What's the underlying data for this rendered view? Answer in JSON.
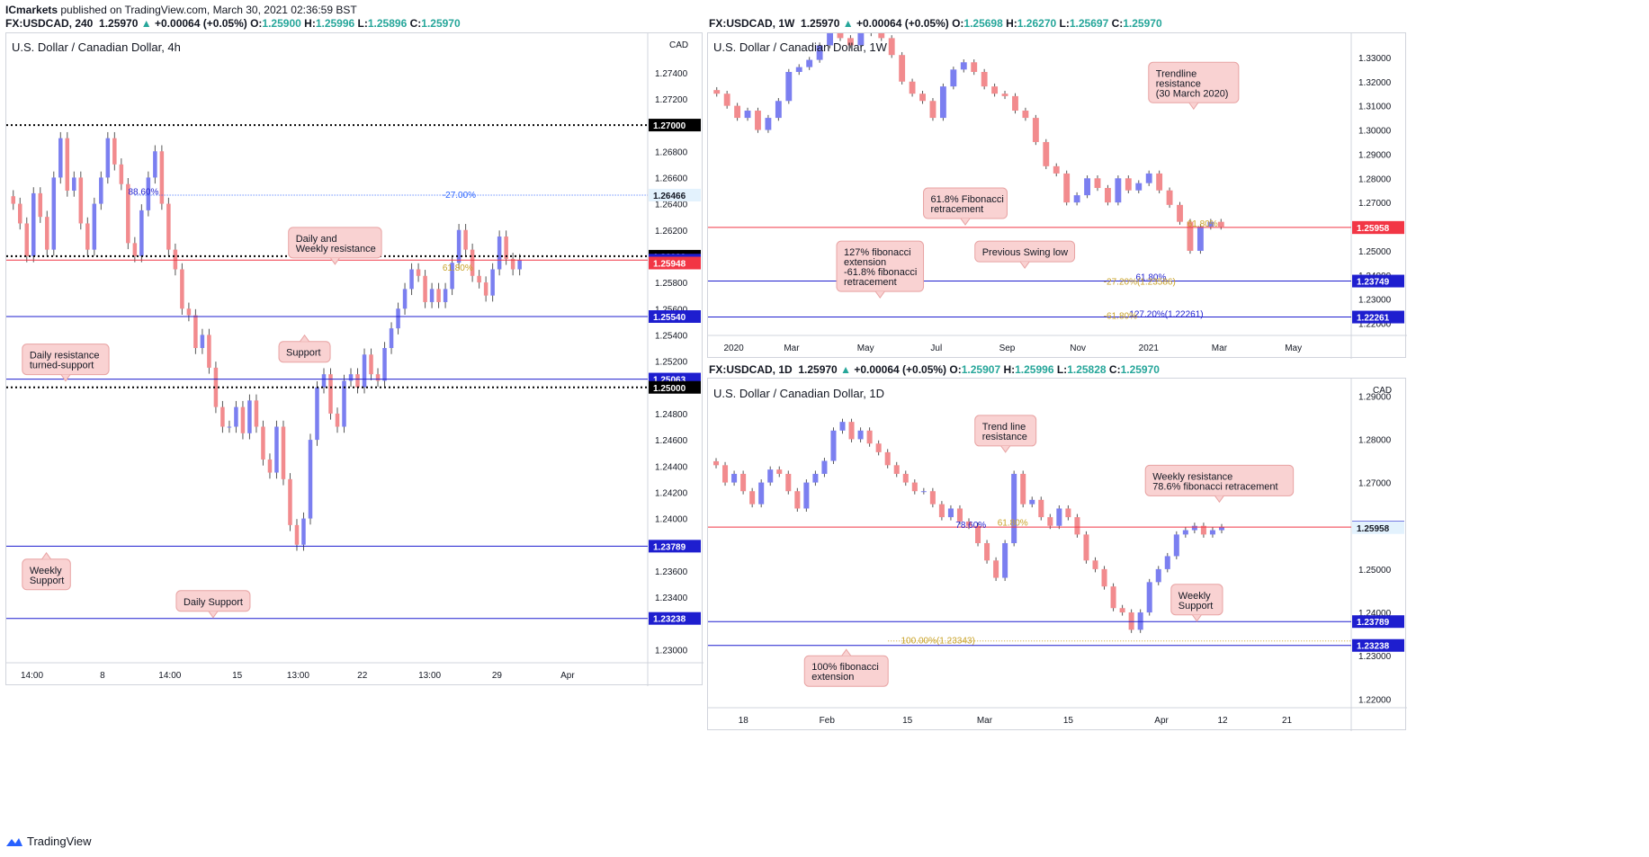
{
  "header": {
    "publisher": "ICmarkets",
    "published_text": " published on TradingView.com, March 30, 2021 02:36:59 BST"
  },
  "footer": {
    "brand": "TradingView"
  },
  "colors": {
    "bull": "#7b7ff0",
    "bear": "#f28b8e",
    "resistance": "#f23645",
    "support": "#1e1ecf",
    "callout_bg": "#f9d2d2",
    "callout_border": "#e8a3a3",
    "fib_blue": "#2962ff",
    "fib_orange": "#c9a227"
  },
  "chart_data": [
    {
      "id": "h4",
      "type": "candlestick",
      "symbol_line": {
        "sym": "FX:USDCAD, 240",
        "last": "1.25970",
        "chg": "+0.00064 (+0.05%)",
        "o": "1.25900",
        "h": "1.25996",
        "l": "1.25896",
        "c": "1.25970"
      },
      "subtitle": "U.S. Dollar / Canadian Dollar, 4h",
      "currency": "CAD",
      "ylim": [
        1.229,
        1.277
      ],
      "yticks": [
        "1.27400",
        "1.27200",
        "1.26800",
        "1.26600",
        "1.26400",
        "1.26200",
        "1.25800",
        "1.25600",
        "1.25400",
        "1.25200",
        "1.24800",
        "1.24600",
        "1.24400",
        "1.24200",
        "1.24000",
        "1.23600",
        "1.23400",
        "1.23000"
      ],
      "xticks": [
        [
          "14:00",
          0.04
        ],
        [
          "8",
          0.15
        ],
        [
          "14:00",
          0.255
        ],
        [
          "15",
          0.36
        ],
        [
          "13:00",
          0.455
        ],
        [
          "22",
          0.555
        ],
        [
          "13:00",
          0.66
        ],
        [
          "29",
          0.765
        ],
        [
          "Apr",
          0.875
        ]
      ],
      "hlines": [
        {
          "y": 1.27,
          "style": "dotted",
          "color": "#000000",
          "label": "1.27000",
          "tag": "#000000"
        },
        {
          "y": 1.26466,
          "style": "dotted-thin",
          "color": "#2962ff",
          "label": "1.26466",
          "tag": "#e3f2fd",
          "text": "-27.00%"
        },
        {
          "y": 1.26,
          "style": "dotted",
          "color": "#000000",
          "label": "1.26000",
          "tag": "#000000"
        },
        {
          "y": 1.2597,
          "style": "solid",
          "color": "#f23645",
          "label": "1.25970",
          "tag": "#1e1ecf"
        },
        {
          "y": 1.25948,
          "style": "none",
          "color": "#f23645",
          "label": "1.25948",
          "tag": "#f23645"
        },
        {
          "y": 1.2554,
          "style": "solid",
          "color": "#1e1ecf",
          "label": "1.25540",
          "tag": "#1e1ecf"
        },
        {
          "y": 1.25063,
          "style": "solid",
          "color": "#1e1ecf",
          "label": "1.25063",
          "tag": "#1e1ecf"
        },
        {
          "y": 1.25,
          "style": "dotted",
          "color": "#000000",
          "label": "1.25000",
          "tag": "#000000"
        },
        {
          "y": 1.23789,
          "style": "solid",
          "color": "#1e1ecf",
          "label": "1.23789",
          "tag": "#1e1ecf"
        },
        {
          "y": 1.23238,
          "style": "solid",
          "color": "#1e1ecf",
          "label": "1.23238",
          "tag": "#1e1ecf"
        }
      ],
      "fib_labels": [
        {
          "text": "88.60%",
          "x": 0.19,
          "y": 1.2647,
          "color": "#1e1ecf"
        },
        {
          "text": "61.80%",
          "x": 0.68,
          "y": 1.2589,
          "color": "#c9a227"
        }
      ],
      "callouts": [
        {
          "text": [
            "Daily and",
            "Weekly resistance"
          ],
          "x": 0.44,
          "y": 1.2622,
          "w": 0.145,
          "ptr": "down"
        },
        {
          "text": [
            "Support"
          ],
          "x": 0.425,
          "y": 1.2535,
          "w": 0.08,
          "ptr": "up"
        },
        {
          "text": [
            "Daily resistance",
            "turned-support"
          ],
          "x": 0.025,
          "y": 1.2533,
          "w": 0.135,
          "ptr": "down"
        },
        {
          "text": [
            "Weekly",
            "Support"
          ],
          "x": 0.025,
          "y": 1.2369,
          "w": 0.075,
          "ptr": "up"
        },
        {
          "text": [
            "Daily Support"
          ],
          "x": 0.265,
          "y": 1.2345,
          "w": 0.115,
          "ptr": "down"
        }
      ],
      "closes": [
        1.264,
        1.2625,
        1.26,
        1.2648,
        1.263,
        1.2605,
        1.266,
        1.269,
        1.265,
        1.266,
        1.2625,
        1.2605,
        1.264,
        1.266,
        1.269,
        1.267,
        1.2655,
        1.261,
        1.26,
        1.2635,
        1.266,
        1.268,
        1.264,
        1.2605,
        1.259,
        1.256,
        1.2555,
        1.253,
        1.254,
        1.2515,
        1.2485,
        1.247,
        1.247,
        1.2485,
        1.2465,
        1.249,
        1.247,
        1.2445,
        1.2435,
        1.247,
        1.243,
        1.2395,
        1.238,
        1.24,
        1.246,
        1.25,
        1.251,
        1.248,
        1.247,
        1.2505,
        1.251,
        1.25,
        1.2525,
        1.251,
        1.2505,
        1.253,
        1.2545,
        1.256,
        1.2575,
        1.259,
        1.2585,
        1.2565,
        1.2575,
        1.2565,
        1.2575,
        1.2595,
        1.262,
        1.2605,
        1.2585,
        1.258,
        1.257,
        1.259,
        1.2615,
        1.2598,
        1.259,
        1.2597
      ]
    },
    {
      "id": "w1",
      "type": "candlestick",
      "symbol_line": {
        "sym": "FX:USDCAD, 1W",
        "last": "1.25970",
        "chg": "+0.00064 (+0.05%)",
        "o": "1.25698",
        "h": "1.26270",
        "l": "1.25697",
        "c": "1.25970"
      },
      "subtitle": "U.S. Dollar / Canadian Dollar, 1W",
      "currency": "",
      "ylim": [
        1.215,
        1.34
      ],
      "yticks": [
        "1.33000",
        "1.32000",
        "1.31000",
        "1.30000",
        "1.29000",
        "1.28000",
        "1.27000",
        "1.26000",
        "1.25000",
        "1.24000",
        "1.23000",
        "1.22000"
      ],
      "xticks": [
        [
          "2020",
          0.04
        ],
        [
          "Mar",
          0.13
        ],
        [
          "May",
          0.245
        ],
        [
          "Jul",
          0.355
        ],
        [
          "Sep",
          0.465
        ],
        [
          "Nov",
          0.575
        ],
        [
          "2021",
          0.685
        ],
        [
          "Mar",
          0.795
        ],
        [
          "May",
          0.91
        ]
      ],
      "hlines": [
        {
          "y": 1.2597,
          "style": "solid",
          "color": "#f23645",
          "label": "1.25970",
          "tag": "#f23645"
        },
        {
          "y": 1.25958,
          "style": "none",
          "color": "#f23645",
          "label": "1.25958",
          "tag": "#f23645"
        },
        {
          "y": 1.23749,
          "style": "solid",
          "color": "#1e1ecf",
          "label": "1.23749",
          "tag": "#1e1ecf"
        },
        {
          "y": 1.22261,
          "style": "solid",
          "color": "#1e1ecf",
          "label": "1.22261",
          "tag": "#1e1ecf"
        }
      ],
      "fib_labels": [
        {
          "text": "61.80%",
          "x": 0.745,
          "y": 1.26,
          "color": "#c9a227"
        },
        {
          "text": "61.80%",
          "x": 0.665,
          "y": 1.2378,
          "color": "#1e1ecf"
        },
        {
          "text": "-27.20%(1.23586)",
          "x": 0.615,
          "y": 1.236,
          "color": "#c9a227"
        },
        {
          "text": "127.20%(1.22261)",
          "x": 0.655,
          "y": 1.2227,
          "color": "#1e1ecf"
        },
        {
          "text": "-61.80%",
          "x": 0.615,
          "y": 1.2218,
          "color": "#c9a227"
        }
      ],
      "callouts": [
        {
          "text": [
            "Trendline",
            "resistance",
            "(30 March 2020)"
          ],
          "x": 0.685,
          "y": 1.328,
          "w": 0.14,
          "ptr": "down"
        },
        {
          "text": [
            "61.8% Fibonacci",
            "retracement"
          ],
          "x": 0.335,
          "y": 1.276,
          "w": 0.13,
          "ptr": "down"
        },
        {
          "text": [
            "127% fibonacci",
            "extension",
            "-61.8% fibonacci",
            "retracement"
          ],
          "x": 0.2,
          "y": 1.254,
          "w": 0.135,
          "ptr": "down"
        },
        {
          "text": [
            "Previous Swing low"
          ],
          "x": 0.415,
          "y": 1.254,
          "w": 0.155,
          "ptr": "down"
        }
      ],
      "closes": [
        1.315,
        1.31,
        1.305,
        1.308,
        1.3,
        1.305,
        1.312,
        1.324,
        1.326,
        1.329,
        1.335,
        1.34,
        1.338,
        1.335,
        1.341,
        1.34,
        1.338,
        1.331,
        1.32,
        1.315,
        1.312,
        1.305,
        1.318,
        1.325,
        1.328,
        1.324,
        1.318,
        1.315,
        1.314,
        1.308,
        1.305,
        1.295,
        1.285,
        1.282,
        1.27,
        1.273,
        1.28,
        1.276,
        1.27,
        1.28,
        1.275,
        1.278,
        1.282,
        1.275,
        1.269,
        1.262,
        1.25,
        1.26,
        1.262,
        1.26
      ]
    },
    {
      "id": "d1",
      "type": "candlestick",
      "symbol_line": {
        "sym": "FX:USDCAD, 1D",
        "last": "1.25970",
        "chg": "+0.00064 (+0.05%)",
        "o": "1.25907",
        "h": "1.25996",
        "l": "1.25828",
        "c": "1.25970"
      },
      "subtitle": "U.S. Dollar / Canadian Dollar, 1D",
      "currency": "CAD",
      "ylim": [
        1.218,
        1.294
      ],
      "yticks": [
        "1.29000",
        "1.28000",
        "1.27000",
        "1.26000",
        "1.25000",
        "1.24000",
        "1.23000",
        "1.22000"
      ],
      "xticks": [
        [
          "18",
          0.055
        ],
        [
          "Feb",
          0.185
        ],
        [
          "15",
          0.31
        ],
        [
          "Mar",
          0.43
        ],
        [
          "15",
          0.56
        ],
        [
          "Apr",
          0.705
        ],
        [
          "12",
          0.8
        ],
        [
          "21",
          0.9
        ]
      ],
      "hlines": [
        {
          "y": 1.2597,
          "style": "solid",
          "color": "#f23645",
          "label": "1.25970",
          "tag": "#1e1ecf"
        },
        {
          "y": 1.25958,
          "style": "none",
          "color": "#f23645",
          "label": "1.25958",
          "tag": "#e3f2fd"
        },
        {
          "y": 1.23789,
          "style": "solid",
          "color": "#1e1ecf",
          "label": "1.23789",
          "tag": "#1e1ecf"
        },
        {
          "y": 1.23343,
          "style": "dotted-orange",
          "color": "#c9a227",
          "label": "",
          "tag": "",
          "text": "100.00%(1.23343)"
        },
        {
          "y": 1.23238,
          "style": "solid",
          "color": "#1e1ecf",
          "label": "1.23238",
          "tag": "#1e1ecf"
        }
      ],
      "fib_labels": [
        {
          "text": "78.60%",
          "x": 0.385,
          "y": 1.2595,
          "color": "#1e1ecf"
        },
        {
          "text": "61.80%",
          "x": 0.45,
          "y": 1.26,
          "color": "#c9a227"
        }
      ],
      "callouts": [
        {
          "text": [
            "Trend line",
            "resistance"
          ],
          "x": 0.415,
          "y": 1.2855,
          "w": 0.095,
          "ptr": "down"
        },
        {
          "text": [
            "Weekly resistance",
            "78.6% fibonacci retracement"
          ],
          "x": 0.68,
          "y": 1.274,
          "w": 0.23,
          "ptr": "down"
        },
        {
          "text": [
            "Weekly",
            "Support"
          ],
          "x": 0.72,
          "y": 1.2465,
          "w": 0.08,
          "ptr": "down"
        },
        {
          "text": [
            "100% fibonacci",
            "extension"
          ],
          "x": 0.15,
          "y": 1.23,
          "w": 0.13,
          "ptr": "up"
        }
      ],
      "closes": [
        1.274,
        1.27,
        1.272,
        1.268,
        1.265,
        1.27,
        1.273,
        1.272,
        1.268,
        1.264,
        1.27,
        1.272,
        1.275,
        1.282,
        1.284,
        1.28,
        1.282,
        1.279,
        1.277,
        1.274,
        1.272,
        1.27,
        1.268,
        1.268,
        1.265,
        1.262,
        1.264,
        1.261,
        1.26,
        1.256,
        1.252,
        1.248,
        1.256,
        1.272,
        1.265,
        1.266,
        1.262,
        1.26,
        1.264,
        1.262,
        1.258,
        1.252,
        1.25,
        1.246,
        1.241,
        1.24,
        1.236,
        1.24,
        1.247,
        1.25,
        1.253,
        1.258,
        1.259,
        1.26,
        1.258,
        1.259,
        1.2597
      ]
    }
  ]
}
